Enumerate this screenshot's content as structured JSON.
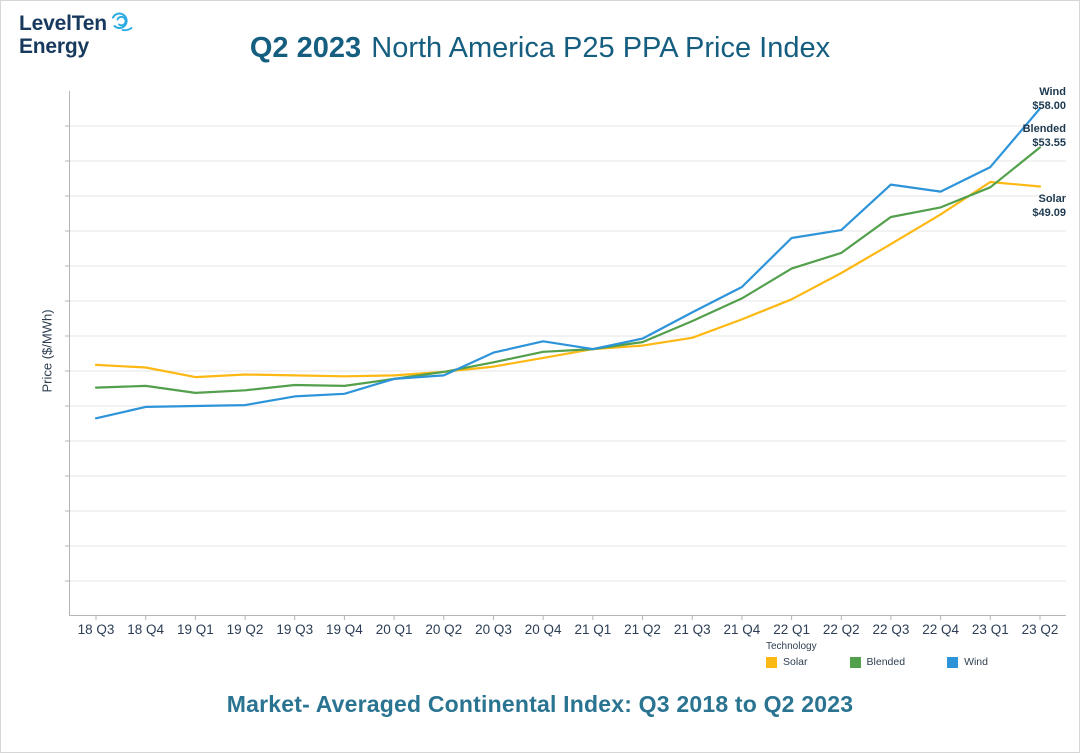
{
  "header": {
    "logo_line1": "LevelTen",
    "logo_line2": "Energy",
    "title_strong": "Q2 2023",
    "title_rest": "North America P25 PPA Price Index"
  },
  "footer": {
    "subtitle": "Market- Averaged Continental Index: Q3 2018 to Q2 2023"
  },
  "colors": {
    "solar": "#FDB813",
    "blended": "#53A04C",
    "wind": "#2E94D9",
    "title": "#155E80",
    "subtitle": "#2A7492",
    "logo_swirl": "#29ABE2",
    "axis": "#B5B5B5",
    "gridline": "#E5E5E5"
  },
  "chart_data": {
    "type": "line",
    "title": "Q2 2023 North America P25 PPA Price Index",
    "xlabel": "",
    "ylabel": "Price ($/MWh)",
    "ylim": [
      0,
      60
    ],
    "grid": true,
    "grid_step": 4,
    "legend_title": "Technology",
    "legend_position": "bottom",
    "categories": [
      "18 Q3",
      "18 Q4",
      "19 Q1",
      "19 Q2",
      "19 Q3",
      "19 Q4",
      "20 Q1",
      "20 Q2",
      "20 Q3",
      "20 Q4",
      "21 Q1",
      "21 Q2",
      "21 Q3",
      "21 Q4",
      "22 Q1",
      "22 Q2",
      "22 Q3",
      "22 Q4",
      "23 Q1",
      "23 Q2"
    ],
    "series": [
      {
        "name": "Solar",
        "color": "#FDB813",
        "end_value_label": "$49.09",
        "values": [
          28.7,
          28.4,
          27.3,
          27.6,
          27.5,
          27.4,
          27.5,
          27.9,
          28.5,
          29.5,
          30.5,
          30.9,
          31.8,
          33.9,
          36.2,
          39.2,
          42.5,
          45.9,
          49.6,
          49.09
        ]
      },
      {
        "name": "Blended",
        "color": "#53A04C",
        "end_value_label": "$53.55",
        "values": [
          26.1,
          26.3,
          25.5,
          25.8,
          26.4,
          26.3,
          27.1,
          27.9,
          29.0,
          30.2,
          30.5,
          31.3,
          33.7,
          36.3,
          39.7,
          41.5,
          45.6,
          46.7,
          49.0,
          53.55
        ]
      },
      {
        "name": "Wind",
        "color": "#2E94D9",
        "end_value_label": "$58.00",
        "values": [
          22.6,
          23.9,
          24.0,
          24.1,
          25.1,
          25.4,
          27.1,
          27.5,
          30.1,
          31.4,
          30.5,
          31.7,
          34.7,
          37.6,
          43.2,
          44.1,
          49.3,
          48.5,
          51.3,
          58.0
        ]
      }
    ],
    "annotations": [
      {
        "series": "Wind",
        "label": "Wind",
        "value_label": "$58.00"
      },
      {
        "series": "Blended",
        "label": "Blended",
        "value_label": "$53.55"
      },
      {
        "series": "Solar",
        "label": "Solar",
        "value_label": "$49.09"
      }
    ]
  }
}
